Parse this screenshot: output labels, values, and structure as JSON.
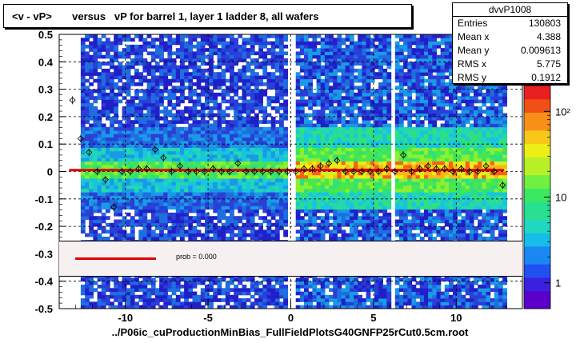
{
  "title": "<v - vP>       versus   vP for barrel 1, layer 1 ladder 8, all wafers",
  "stats": {
    "name": "dvvP1008",
    "rows": [
      {
        "label": "Entries",
        "value": "130803"
      },
      {
        "label": "Mean x",
        "value": "4.388"
      },
      {
        "label": "Mean y",
        "value": "0.009613"
      },
      {
        "label": "RMS x",
        "value": "5.775"
      },
      {
        "label": "RMS y",
        "value": "0.1912"
      }
    ]
  },
  "footer": "../P06ic_cuProductionMinBias_FullFieldPlotsG40GNFP25rCut0.5cm.root",
  "legend": {
    "text": "prob = 0.000"
  },
  "chart_data": {
    "type": "heatmap",
    "xlim": [
      -14,
      14
    ],
    "ylim": [
      -0.5,
      0.5
    ],
    "x_ticks": [
      -10,
      -5,
      0,
      5,
      10
    ],
    "x_tick_labels": [
      "-10",
      "-5",
      "0",
      "5",
      "10"
    ],
    "y_ticks": [
      -0.5,
      -0.4,
      -0.3,
      -0.2,
      -0.1,
      0,
      0.1,
      0.2,
      0.3,
      0.4,
      0.5
    ],
    "y_tick_labels": [
      "-0.5",
      "-0.4",
      "-0.3",
      "-0.2",
      "-0.1",
      "0",
      "0.1",
      "0.2",
      "0.3",
      "0.4",
      "0.5"
    ],
    "grid": true,
    "colorbar": {
      "scale": "log",
      "ticks": [
        1,
        10,
        100
      ],
      "tick_labels": [
        "1",
        "10",
        "10²"
      ],
      "range": [
        0.5,
        200
      ]
    },
    "fit_line": {
      "y": 0.005,
      "color": "#e00000"
    },
    "profile_points": {
      "x": [
        -13.2,
        -12.7,
        -12.2,
        -11.7,
        -11.2,
        -10.7,
        -10.2,
        -9.7,
        -9.2,
        -8.7,
        -8.2,
        -7.7,
        -7.2,
        -6.7,
        -6.2,
        -5.7,
        -5.2,
        -4.7,
        -4.2,
        -3.7,
        -3.2,
        -2.7,
        -2.2,
        -1.7,
        -1.2,
        -0.7,
        -0.2,
        0.3,
        0.8,
        1.3,
        1.8,
        2.3,
        2.8,
        3.3,
        3.8,
        4.3,
        4.8,
        5.3,
        5.8,
        6.3,
        6.8,
        7.3,
        7.8,
        8.3,
        8.8,
        9.3,
        9.8,
        10.3,
        10.8,
        11.3,
        11.8,
        12.3,
        12.8
      ],
      "y": [
        0.26,
        0.12,
        0.07,
        0.0,
        -0.03,
        -0.13,
        0.0,
        0.0,
        0.01,
        0.01,
        0.08,
        0.05,
        0.0,
        0.02,
        0.0,
        0.0,
        0.0,
        0.01,
        0.0,
        0.0,
        0.03,
        0.0,
        0.0,
        0.0,
        0.0,
        0.0,
        0.0,
        0.0,
        0.01,
        0.01,
        0.02,
        0.03,
        0.04,
        0.0,
        0.0,
        0.0,
        0.0,
        0.0,
        0.01,
        0.0,
        0.06,
        0.0,
        0.01,
        0.02,
        0.01,
        0.01,
        0.0,
        0.01,
        0.0,
        0.0,
        0.02,
        0.0,
        -0.05
      ]
    }
  }
}
